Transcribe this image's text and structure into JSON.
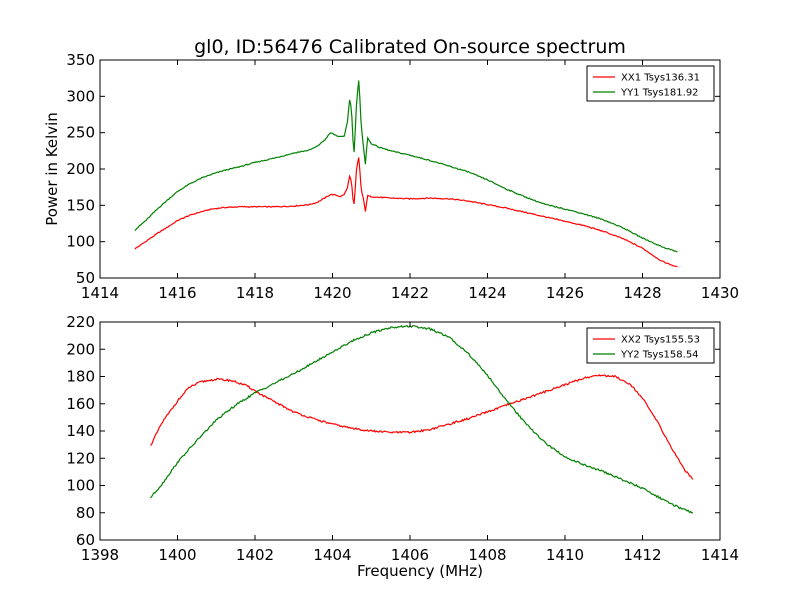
{
  "title": "gl0, ID:56476 Calibrated On-source spectrum",
  "colors": {
    "red": "#ff0000",
    "green": "#008000"
  },
  "chart_data": [
    {
      "type": "line",
      "title": "",
      "xlabel": "",
      "ylabel": "Power in Kelvin",
      "xlim": [
        1414,
        1430
      ],
      "ylim": [
        50,
        350
      ],
      "xticks": [
        1414,
        1416,
        1418,
        1420,
        1422,
        1424,
        1426,
        1428,
        1430
      ],
      "yticks": [
        50,
        100,
        150,
        200,
        250,
        300,
        350
      ],
      "legend": "top-right",
      "series": [
        {
          "name": "XX1 Tsys136.31",
          "color": "red",
          "x": [
            1414.9,
            1415.2,
            1415.5,
            1415.8,
            1416.0,
            1416.3,
            1416.6,
            1416.9,
            1417.2,
            1417.6,
            1418.0,
            1418.5,
            1419.0,
            1419.4,
            1419.6,
            1419.8,
            1419.95,
            1420.1,
            1420.2,
            1420.3,
            1420.38,
            1420.45,
            1420.5,
            1420.55,
            1420.62,
            1420.68,
            1420.74,
            1420.8,
            1420.85,
            1420.9,
            1421.0,
            1421.2,
            1421.5,
            1422.0,
            1422.5,
            1423.0,
            1423.5,
            1424.0,
            1424.5,
            1425.0,
            1425.5,
            1426.0,
            1426.5,
            1427.0,
            1427.5,
            1428.0,
            1428.5,
            1428.9
          ],
          "y": [
            90,
            101,
            112,
            122,
            129,
            136,
            141,
            145,
            147,
            148,
            148,
            148,
            149,
            151,
            154,
            160,
            165,
            164,
            162,
            165,
            173,
            193,
            176,
            145,
            200,
            217,
            172,
            158,
            142,
            163,
            162,
            161,
            160,
            159,
            160,
            159,
            156,
            151,
            146,
            140,
            134,
            128,
            122,
            114,
            104,
            91,
            73,
            65
          ]
        },
        {
          "name": "YY1 Tsys181.92",
          "color": "green",
          "x": [
            1414.9,
            1415.2,
            1415.5,
            1415.8,
            1416.0,
            1416.3,
            1416.6,
            1416.9,
            1417.2,
            1417.6,
            1418.0,
            1418.5,
            1419.0,
            1419.4,
            1419.6,
            1419.8,
            1419.95,
            1420.1,
            1420.2,
            1420.3,
            1420.38,
            1420.45,
            1420.5,
            1420.55,
            1420.62,
            1420.68,
            1420.74,
            1420.8,
            1420.85,
            1420.9,
            1421.0,
            1421.2,
            1421.5,
            1422.0,
            1422.5,
            1423.0,
            1423.5,
            1424.0,
            1424.5,
            1425.0,
            1425.5,
            1426.0,
            1426.5,
            1427.0,
            1427.5,
            1428.0,
            1428.5,
            1428.9
          ],
          "y": [
            116,
            130,
            146,
            160,
            169,
            179,
            187,
            193,
            198,
            203,
            209,
            215,
            222,
            226,
            231,
            240,
            250,
            246,
            244,
            245,
            263,
            300,
            272,
            215,
            290,
            324,
            260,
            230,
            207,
            243,
            235,
            230,
            225,
            219,
            212,
            204,
            196,
            185,
            172,
            161,
            151,
            145,
            138,
            130,
            119,
            105,
            93,
            86
          ]
        }
      ]
    },
    {
      "type": "line",
      "title": "",
      "xlabel": "Frequency (MHz)",
      "ylabel": "",
      "xlim": [
        1398,
        1414
      ],
      "ylim": [
        60,
        220
      ],
      "xticks": [
        1398,
        1400,
        1402,
        1404,
        1406,
        1408,
        1410,
        1412,
        1414
      ],
      "yticks": [
        60,
        80,
        100,
        120,
        140,
        160,
        180,
        200,
        220
      ],
      "legend": "top-right",
      "series": [
        {
          "name": "XX2 Tsys155.53",
          "color": "red",
          "x": [
            1399.3,
            1399.6,
            1400.0,
            1400.3,
            1400.6,
            1401.0,
            1401.4,
            1401.8,
            1402.2,
            1402.6,
            1403.0,
            1403.5,
            1404.0,
            1404.5,
            1405.0,
            1405.5,
            1406.0,
            1406.5,
            1407.0,
            1407.5,
            1408.0,
            1408.5,
            1409.0,
            1409.5,
            1410.0,
            1410.5,
            1410.9,
            1411.3,
            1411.7,
            1412.0,
            1412.4,
            1412.8,
            1413.1,
            1413.3
          ],
          "y": [
            129,
            146,
            162,
            172,
            176,
            178,
            177,
            173,
            166,
            160,
            154,
            149,
            145,
            142,
            140,
            139,
            139,
            141,
            145,
            149,
            154,
            159,
            164,
            169,
            174,
            179,
            181,
            180,
            174,
            164,
            146,
            125,
            111,
            105
          ]
        },
        {
          "name": "YY2 Tsys158.54",
          "color": "green",
          "x": [
            1399.3,
            1399.6,
            1400.0,
            1400.5,
            1401.0,
            1401.5,
            1402.0,
            1402.5,
            1403.0,
            1403.5,
            1404.0,
            1404.5,
            1405.0,
            1405.5,
            1406.0,
            1406.5,
            1407.0,
            1407.5,
            1408.0,
            1408.5,
            1409.0,
            1409.5,
            1410.0,
            1410.5,
            1411.0,
            1411.5,
            1412.0,
            1412.5,
            1413.0,
            1413.3
          ],
          "y": [
            91,
            101,
            117,
            133,
            148,
            159,
            168,
            175,
            182,
            190,
            198,
            206,
            212,
            216,
            217,
            215,
            209,
            197,
            181,
            162,
            145,
            131,
            121,
            115,
            110,
            104,
            98,
            90,
            83,
            80
          ]
        }
      ]
    }
  ]
}
